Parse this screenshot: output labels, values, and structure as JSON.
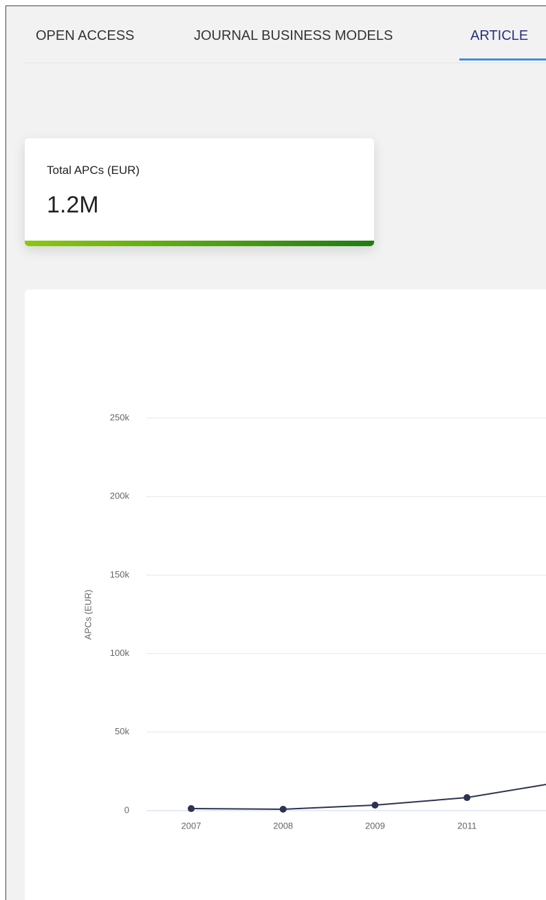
{
  "tabs": [
    {
      "label": "OPEN ACCESS"
    },
    {
      "label": "JOURNAL BUSINESS MODELS"
    },
    {
      "label": "ARTICLE",
      "active": true
    }
  ],
  "summary_card": {
    "label": "Total APCs (EUR)",
    "value": "1.2M"
  },
  "chart_data": {
    "type": "line",
    "y_label": "APCs (EUR)",
    "categories": [
      "2007",
      "2008",
      "2009",
      "2011",
      null
    ],
    "series": [
      {
        "color": "#2b3350",
        "values": [
          1300,
          900,
          3500,
          8300,
          18000
        ]
      }
    ],
    "ylim": [
      0,
      250000
    ],
    "yticks": [
      0,
      {
        "value": 50000,
        "label": "50k"
      },
      {
        "value": 100000,
        "label": "100k"
      },
      {
        "value": 150000,
        "label": "150k"
      },
      {
        "value": 200000,
        "label": "200k"
      },
      {
        "value": 250000,
        "label": "250k"
      }
    ],
    "grid": true
  }
}
